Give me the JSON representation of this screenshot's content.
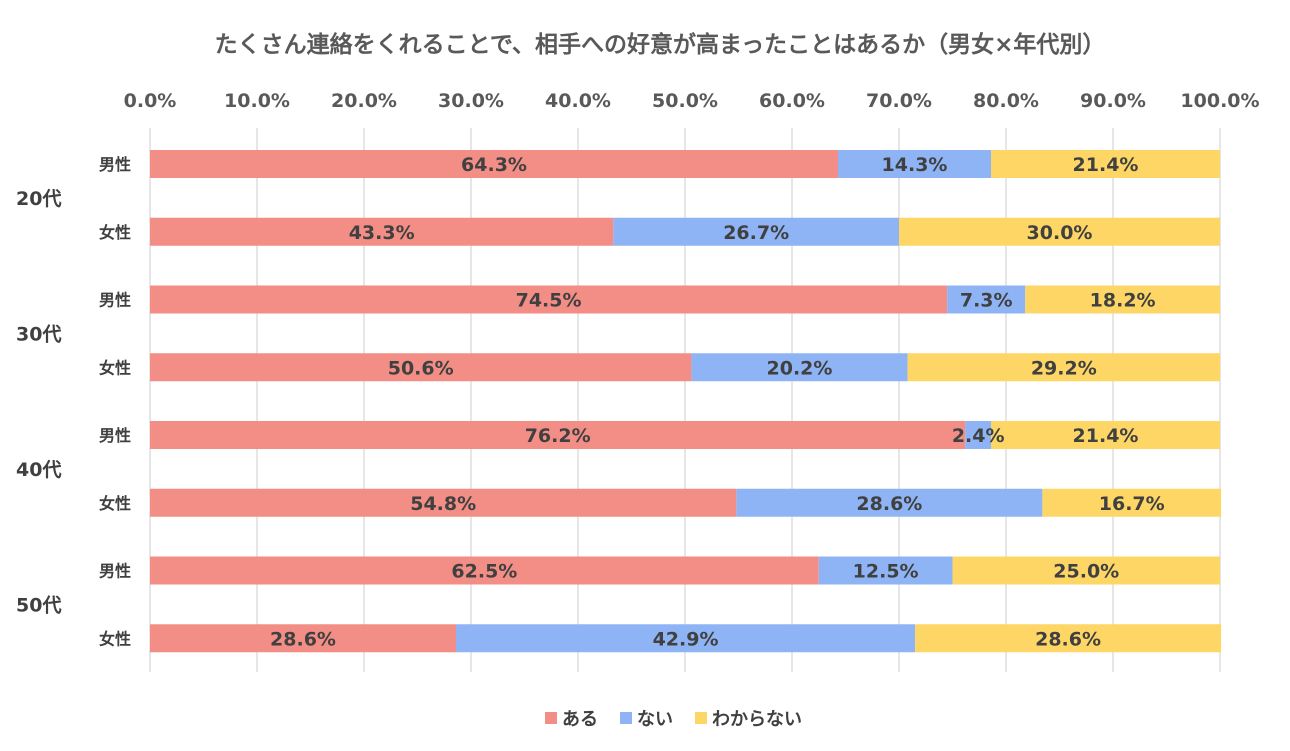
{
  "chart_data": {
    "type": "bar",
    "orientation": "horizontal",
    "stacked": "100%",
    "title": "たくさん連絡をくれることで、相手への好意が高まったことはあるか（男女×年代別）",
    "xlim": [
      0,
      100
    ],
    "x_ticks": [
      "0.0%",
      "10.0%",
      "20.0%",
      "30.0%",
      "40.0%",
      "50.0%",
      "60.0%",
      "70.0%",
      "80.0%",
      "90.0%",
      "100.0%"
    ],
    "groups": [
      "20代",
      "30代",
      "40代",
      "50代"
    ],
    "sub_labels": [
      "男性",
      "女性"
    ],
    "categories": [
      "20代 男性",
      "20代 女性",
      "30代 男性",
      "30代 女性",
      "40代 男性",
      "40代 女性",
      "50代 男性",
      "50代 女性"
    ],
    "series": [
      {
        "name": "ある",
        "color": "#f28e86",
        "values": [
          64.3,
          43.3,
          74.5,
          50.6,
          76.2,
          54.8,
          62.5,
          28.6
        ],
        "labels": [
          "64.3%",
          "43.3%",
          "74.5%",
          "50.6%",
          "76.2%",
          "54.8%",
          "62.5%",
          "28.6%"
        ]
      },
      {
        "name": "ない",
        "color": "#8fb4f5",
        "values": [
          14.3,
          26.7,
          7.3,
          20.2,
          2.4,
          28.6,
          12.5,
          42.9
        ],
        "labels": [
          "14.3%",
          "26.7%",
          "7.3%",
          "20.2%",
          "2.4%",
          "28.6%",
          "12.5%",
          "42.9%"
        ]
      },
      {
        "name": "わからない",
        "color": "#fdd666",
        "values": [
          21.4,
          30.0,
          18.2,
          29.2,
          21.4,
          16.7,
          25.0,
          28.6
        ],
        "labels": [
          "21.4%",
          "30.0%",
          "18.2%",
          "29.2%",
          "21.4%",
          "16.7%",
          "25.0%",
          "28.6%"
        ]
      }
    ],
    "legend": "bottom"
  }
}
